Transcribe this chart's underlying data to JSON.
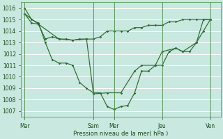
{
  "background_color": "#c8e8e0",
  "grid_color": "#b0d8d0",
  "line_color": "#2d6a2d",
  "xlabels": [
    "Mar",
    "Sam",
    "Mer",
    "Jeu",
    "Ven"
  ],
  "x_tick_positions": [
    0,
    10,
    13,
    20,
    27
  ],
  "xlim": [
    -0.5,
    28.5
  ],
  "ylim": [
    1006.5,
    1016.5
  ],
  "yticks": [
    1007,
    1008,
    1009,
    1010,
    1011,
    1012,
    1013,
    1014,
    1015,
    1016
  ],
  "xlabel": "Pression niveau de la mer( hPa )",
  "line1_x": [
    0,
    1,
    2,
    3,
    4,
    5,
    6,
    7,
    8,
    9,
    10,
    11,
    12,
    13,
    14,
    15,
    16,
    17,
    18,
    19,
    20,
    21,
    22,
    23,
    24,
    25,
    26,
    27
  ],
  "line1_y": [
    1016.0,
    1015.0,
    1014.7,
    1013.0,
    1011.5,
    1011.2,
    1011.2,
    1011.0,
    1009.5,
    1009.0,
    1008.6,
    1008.6,
    1007.4,
    1007.15,
    1007.4,
    1007.5,
    1008.6,
    1010.5,
    1010.5,
    1011.0,
    1011.0,
    1012.2,
    1012.5,
    1012.2,
    1012.2,
    1013.0,
    1015.0,
    1015.0
  ],
  "line2_x": [
    0,
    1,
    2,
    3,
    4,
    5,
    6,
    7,
    8,
    9,
    10,
    11,
    12,
    13,
    14,
    15,
    16,
    17,
    18,
    19,
    20,
    21,
    22,
    23,
    24,
    25,
    26,
    27
  ],
  "line2_y": [
    1015.5,
    1014.7,
    1014.6,
    1013.3,
    1013.5,
    1013.3,
    1013.3,
    1013.2,
    1013.3,
    1013.3,
    1013.3,
    1013.5,
    1014.0,
    1014.0,
    1014.0,
    1014.0,
    1014.3,
    1014.3,
    1014.5,
    1014.5,
    1014.5,
    1014.8,
    1014.8,
    1015.0,
    1015.0,
    1015.0,
    1015.0,
    1015.0
  ],
  "line3_x": [
    0,
    2,
    5,
    7,
    9,
    10,
    12,
    14,
    16,
    17,
    19,
    20,
    22,
    23,
    25,
    26,
    27
  ],
  "line3_y": [
    1015.5,
    1014.6,
    1013.3,
    1013.2,
    1013.3,
    1008.5,
    1008.6,
    1008.6,
    1010.5,
    1011.0,
    1011.0,
    1012.2,
    1012.5,
    1012.2,
    1013.0,
    1014.0,
    1015.0
  ]
}
